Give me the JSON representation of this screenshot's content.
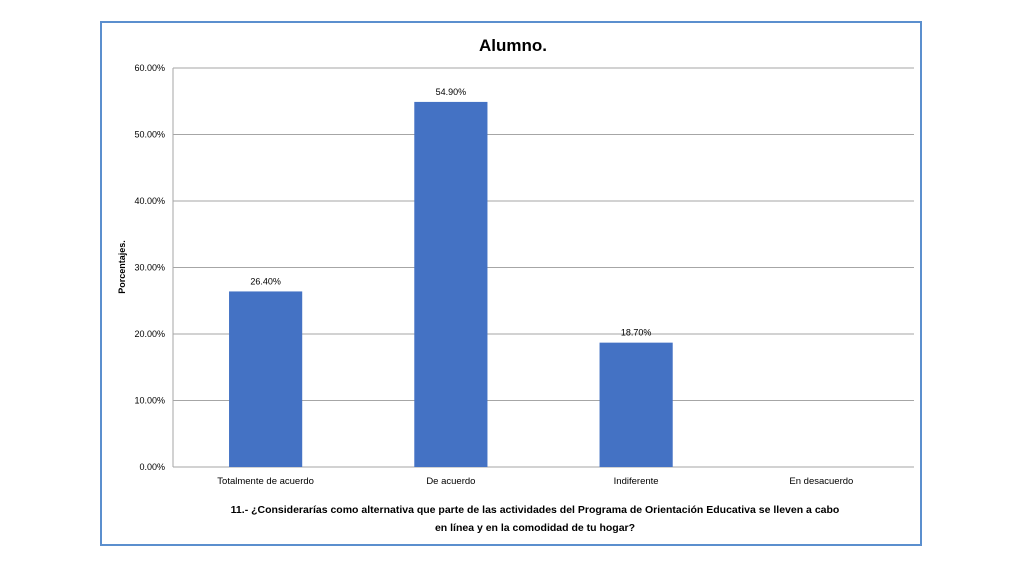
{
  "chart_data": {
    "type": "bar",
    "title": "Alumno.",
    "ylabel": "Porcentajes.",
    "xlabel_lines": [
      "11.-  ¿Considerarías como alternativa que parte de las actividades del Programa de Orientación Educativa se lleven a cabo",
      "en  línea y en la comodidad de tu hogar?"
    ],
    "categories": [
      "Totalmente de acuerdo",
      "De acuerdo",
      "Indiferente",
      "En desacuerdo"
    ],
    "values": [
      26.4,
      54.9,
      18.7,
      null
    ],
    "data_labels": [
      "26.40%",
      "54.90%",
      "18.70%",
      ""
    ],
    "yticks": [
      "0.00%",
      "10.00%",
      "20.00%",
      "30.00%",
      "40.00%",
      "50.00%",
      "60.00%"
    ],
    "ylim": [
      0,
      60
    ],
    "grid": true,
    "legend": false,
    "bar_color": "#4472c4",
    "grid_color": "#a6a6a6",
    "frame_color": "#5b8fce"
  }
}
